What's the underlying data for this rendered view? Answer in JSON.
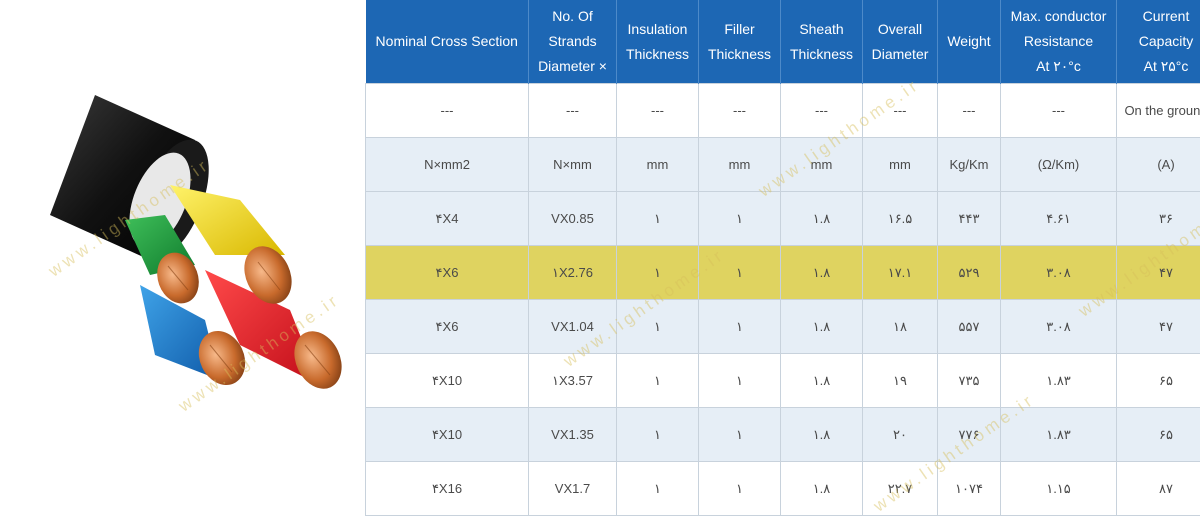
{
  "table": {
    "headers": [
      [
        "Nominal Cross Section"
      ],
      [
        "No. Of",
        "Strands",
        "Diameter ×"
      ],
      [
        "Insulation",
        "Thickness"
      ],
      [
        "Filler",
        "Thickness"
      ],
      [
        "Sheath",
        "Thickness"
      ],
      [
        "Overall",
        "Diameter"
      ],
      [
        "Weight"
      ],
      [
        "Max. conductor",
        "Resistance",
        "At ۲۰°c"
      ],
      [
        "Current",
        "Capacity",
        "At ۲۵°c"
      ]
    ],
    "rows": [
      {
        "style": "white",
        "cells": [
          "---",
          "---",
          "---",
          "---",
          "---",
          "---",
          "---",
          "---",
          "On the ground"
        ]
      },
      {
        "style": "blue",
        "cells": [
          "N×mm2",
          "N×mm",
          "mm",
          "mm",
          "mm",
          "mm",
          "Kg/Km",
          "(Ω/Km)",
          "(A)"
        ]
      },
      {
        "style": "blue",
        "cells": [
          "۴X4",
          "VX0.85",
          "۱",
          "۱",
          "۱.۸",
          "۱۶.۵",
          "۴۴۳",
          "۴.۶۱",
          "۳۶"
        ]
      },
      {
        "style": "hl",
        "cells": [
          "۴X6",
          "۱X2.76",
          "۱",
          "۱",
          "۱.۸",
          "۱۷.۱",
          "۵۲۹",
          "۳.۰۸",
          "۴۷"
        ]
      },
      {
        "style": "blue",
        "cells": [
          "۴X6",
          "VX1.04",
          "۱",
          "۱",
          "۱.۸",
          "۱۸",
          "۵۵۷",
          "۳.۰۸",
          "۴۷"
        ]
      },
      {
        "style": "white",
        "cells": [
          "۴X10",
          "۱X3.57",
          "۱",
          "۱",
          "۱.۸",
          "۱۹",
          "۷۳۵",
          "۱.۸۳",
          "۶۵"
        ]
      },
      {
        "style": "blue",
        "cells": [
          "۴X10",
          "VX1.35",
          "۱",
          "۱",
          "۱.۸",
          "۲۰",
          "۷۷۶",
          "۱.۸۳",
          "۶۵"
        ]
      },
      {
        "style": "white",
        "cells": [
          "۴X16",
          "VX1.7",
          "۱",
          "۱",
          "۱.۸",
          "۲۲.۷",
          "۱۰۷۴",
          "۱.۱۵",
          "۸۷"
        ]
      }
    ]
  },
  "watermark": "www.lighthome.ir",
  "colors": {
    "header_bg": "#1d67b4",
    "row_blue": "#e6eef6",
    "row_highlight": "#dfd360"
  }
}
